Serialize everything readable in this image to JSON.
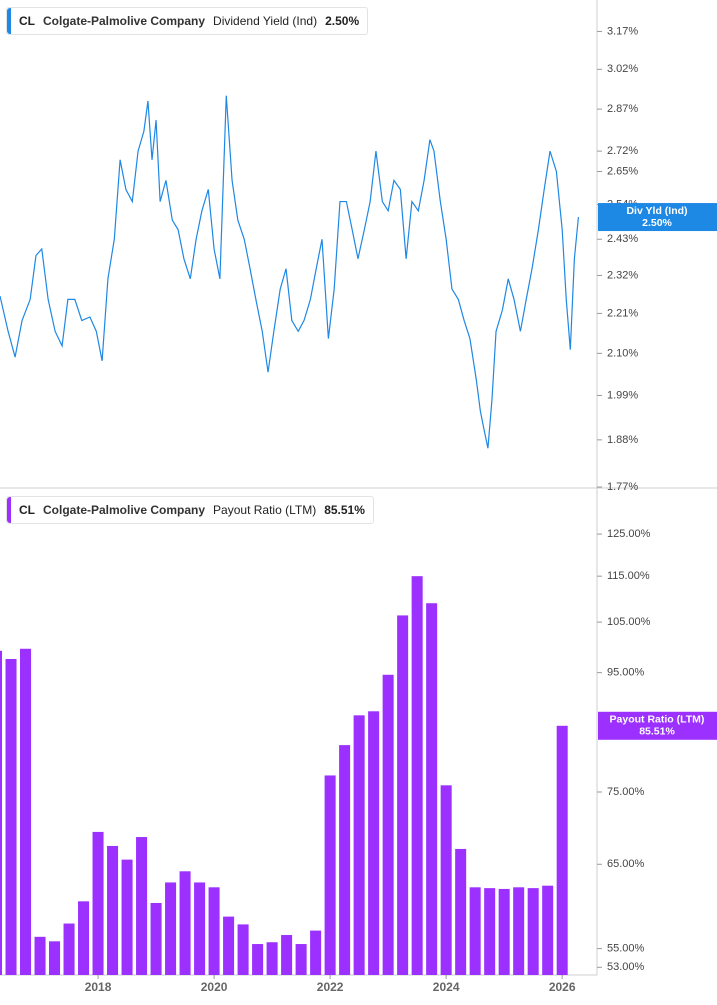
{
  "chart_data": [
    {
      "type": "line",
      "ticker": "CL",
      "title": "Colgate-Palmolive Company",
      "x": [
        2016.31,
        2016.45,
        2016.57,
        2016.69,
        2016.83,
        2016.93,
        2017.03,
        2017.14,
        2017.26,
        2017.38,
        2017.48,
        2017.6,
        2017.72,
        2017.86,
        2017.97,
        2018.07,
        2018.17,
        2018.28,
        2018.38,
        2018.48,
        2018.59,
        2018.69,
        2018.79,
        2018.86,
        2018.93,
        2019.0,
        2019.07,
        2019.17,
        2019.28,
        2019.38,
        2019.48,
        2019.59,
        2019.69,
        2019.79,
        2019.9,
        2020.0,
        2020.1,
        2020.21,
        2020.31,
        2020.41,
        2020.52,
        2020.62,
        2020.72,
        2020.83,
        2020.93,
        2021.03,
        2021.14,
        2021.24,
        2021.34,
        2021.45,
        2021.55,
        2021.66,
        2021.76,
        2021.86,
        2021.97,
        2022.07,
        2022.17,
        2022.28,
        2022.38,
        2022.48,
        2022.59,
        2022.69,
        2022.79,
        2022.9,
        2023.0,
        2023.1,
        2023.21,
        2023.31,
        2023.41,
        2023.52,
        2023.62,
        2023.72,
        2023.79,
        2023.9,
        2024.0,
        2024.1,
        2024.21,
        2024.31,
        2024.41,
        2024.52,
        2024.59,
        2024.66,
        2024.72,
        2024.79,
        2024.86,
        2024.97,
        2025.07,
        2025.17,
        2025.28,
        2025.38,
        2025.48,
        2025.59,
        2025.69,
        2025.79,
        2025.9,
        2026.0,
        2026.07,
        2026.14,
        2026.21,
        2026.28
      ],
      "series": [
        {
          "name": "Dividend Yield (Ind)",
          "color": "#1e88e5",
          "values": [
            2.26,
            2.16,
            2.09,
            2.19,
            2.25,
            2.38,
            2.4,
            2.25,
            2.16,
            2.12,
            2.25,
            2.25,
            2.19,
            2.2,
            2.16,
            2.08,
            2.31,
            2.43,
            2.69,
            2.59,
            2.55,
            2.72,
            2.79,
            2.9,
            2.69,
            2.83,
            2.55,
            2.62,
            2.49,
            2.46,
            2.37,
            2.31,
            2.43,
            2.52,
            2.59,
            2.4,
            2.31,
            2.92,
            2.62,
            2.49,
            2.43,
            2.34,
            2.25,
            2.16,
            2.05,
            2.16,
            2.28,
            2.34,
            2.19,
            2.16,
            2.19,
            2.25,
            2.34,
            2.43,
            2.14,
            2.28,
            2.55,
            2.55,
            2.46,
            2.37,
            2.46,
            2.55,
            2.72,
            2.55,
            2.52,
            2.62,
            2.59,
            2.37,
            2.55,
            2.52,
            2.62,
            2.76,
            2.72,
            2.55,
            2.43,
            2.28,
            2.25,
            2.19,
            2.14,
            2.03,
            1.95,
            1.9,
            1.86,
            1.98,
            2.16,
            2.22,
            2.31,
            2.25,
            2.16,
            2.25,
            2.34,
            2.46,
            2.59,
            2.72,
            2.65,
            2.46,
            2.25,
            2.11,
            2.37,
            2.5
          ]
        }
      ],
      "current_value": 2.5,
      "current_value_label": "2.50%",
      "flag_label": "Div Yld (Ind)",
      "xlim": [
        2016.31,
        2026.6
      ],
      "ylim": [
        1.77,
        3.3
      ],
      "log_scale": true,
      "yticks": [
        {
          "value": 3.17,
          "label": "3.17%"
        },
        {
          "value": 3.02,
          "label": "3.02%"
        },
        {
          "value": 2.87,
          "label": "2.87%"
        },
        {
          "value": 2.72,
          "label": "2.72%"
        },
        {
          "value": 2.65,
          "label": "2.65%"
        },
        {
          "value": 2.54,
          "label": "2.54%"
        },
        {
          "value": 2.43,
          "label": "2.43%"
        },
        {
          "value": 2.32,
          "label": "2.32%"
        },
        {
          "value": 2.21,
          "label": "2.21%"
        },
        {
          "value": 2.1,
          "label": "2.10%"
        },
        {
          "value": 1.99,
          "label": "1.99%"
        },
        {
          "value": 1.88,
          "label": "1.88%"
        },
        {
          "value": 1.77,
          "label": "1.77%"
        }
      ]
    },
    {
      "type": "bar",
      "ticker": "CL",
      "title": "Colgate-Palmolive Company",
      "x": [
        2016.25,
        2016.5,
        2016.75,
        2017.0,
        2017.25,
        2017.5,
        2017.75,
        2018.0,
        2018.25,
        2018.5,
        2018.75,
        2019.0,
        2019.25,
        2019.5,
        2019.75,
        2020.0,
        2020.25,
        2020.5,
        2020.75,
        2021.0,
        2021.25,
        2021.5,
        2021.75,
        2022.0,
        2022.25,
        2022.5,
        2022.75,
        2023.0,
        2023.25,
        2023.5,
        2023.75,
        2024.0,
        2024.25,
        2024.5,
        2024.75,
        2025.0,
        2025.25,
        2025.5,
        2025.75,
        2026.0
      ],
      "series": [
        {
          "name": "Payout Ratio (LTM)",
          "color": "#9b30ff",
          "values": [
            99.2,
            97.6,
            99.6,
            56.3,
            55.8,
            57.8,
            60.4,
            69.3,
            67.4,
            65.6,
            68.6,
            60.2,
            62.7,
            64.1,
            62.7,
            62.1,
            58.6,
            57.7,
            55.5,
            55.7,
            56.5,
            55.5,
            57.0,
            77.5,
            82.3,
            87.3,
            88.0,
            94.6,
            106.4,
            115.0,
            109.0,
            76.0,
            67.0,
            62.1,
            62.0,
            61.9,
            62.1,
            62.0,
            62.3,
            85.51
          ]
        }
      ],
      "current_value": 85.51,
      "current_value_label": "85.51%",
      "xlim": [
        2016.31,
        2026.6
      ],
      "ylim": [
        52.2,
        136.4
      ],
      "log_scale": true,
      "xticks": [
        2018,
        2020,
        2022,
        2024,
        2026
      ],
      "yticks": [
        {
          "value": 125,
          "label": "125.00%"
        },
        {
          "value": 115,
          "label": "115.00%"
        },
        {
          "value": 105,
          "label": "105.00%"
        },
        {
          "value": 95,
          "label": "95.00%"
        },
        {
          "value": 75,
          "label": "75.00%"
        },
        {
          "value": 65,
          "label": "65.00%"
        },
        {
          "value": 55,
          "label": "55.00%"
        },
        {
          "value": 53,
          "label": "53.00%"
        }
      ]
    }
  ]
}
